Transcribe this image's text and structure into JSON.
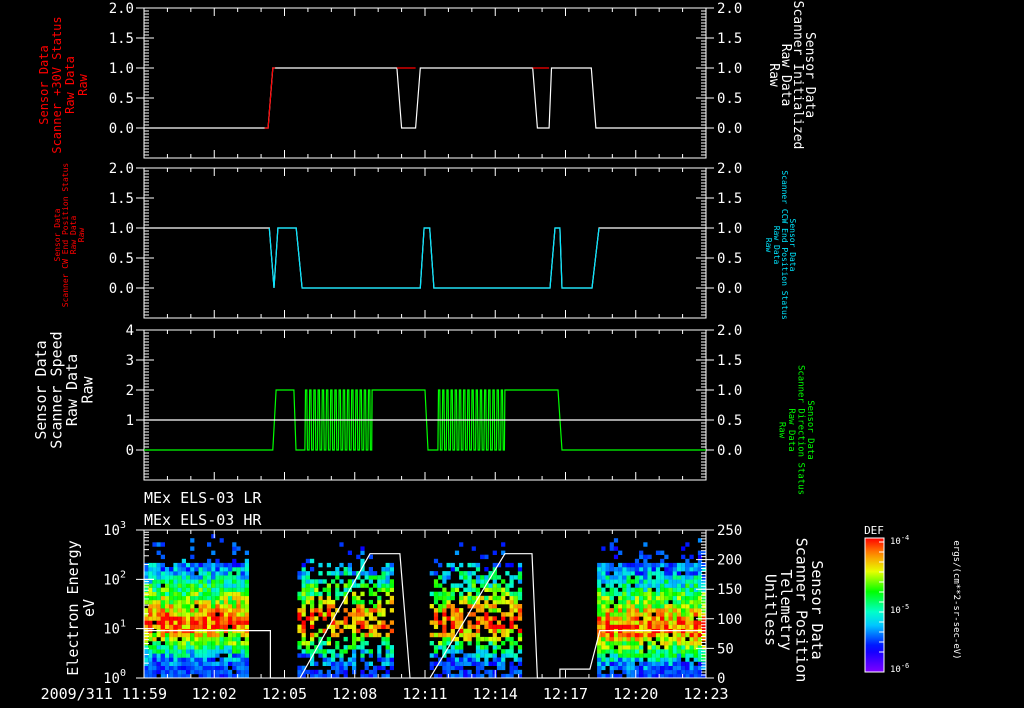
{
  "colors": {
    "white": "#ffffff",
    "red": "#ff0000",
    "cyan": "#00e5ff",
    "green": "#00ff00",
    "background": "#000000"
  },
  "time_axis": {
    "start": "11:59",
    "end": "12:23",
    "ticks": [
      "2009/311 11:59",
      "12:02",
      "12:05",
      "12:08",
      "12:11",
      "12:14",
      "12:17",
      "12:20",
      "12:23"
    ],
    "tick_minutes": [
      0,
      3,
      6,
      9,
      12,
      15,
      18,
      21,
      24
    ]
  },
  "chart_data": [
    {
      "type": "line",
      "name": "panel-1",
      "left_label": [
        "Sensor Data",
        "Scanner +30V Status",
        "Raw Data",
        "Raw"
      ],
      "right_label": [
        "Sensor Data",
        "Scanner Initialized",
        "Raw Data",
        "Raw"
      ],
      "left_ticks": [
        "2.0",
        "1.5",
        "1.0",
        "0.5",
        "0.0"
      ],
      "left_tick_values": [
        2,
        1.5,
        1,
        0.5,
        0
      ],
      "ylim": [
        -0.5,
        2.0
      ],
      "right_ticks": [
        "2.0",
        "1.5",
        "1.0",
        "0.5",
        "0.0"
      ],
      "right_tick_values": [
        2,
        1.5,
        1,
        0.5,
        0
      ],
      "ylim_right": [
        -0.5,
        2.0
      ],
      "series": [
        {
          "name": "Scanner Initialized",
          "color": "#ffffff",
          "x_minutes": [
            0,
            5.3,
            5.5,
            10.8,
            11.0,
            11.6,
            11.8,
            16.6,
            16.8,
            17.3,
            17.4,
            19.1,
            19.3,
            24
          ],
          "values": [
            0,
            0,
            1,
            1,
            0,
            0,
            1,
            1,
            0,
            0,
            1,
            1,
            0,
            0
          ]
        },
        {
          "name": "Scanner +30V Status",
          "color": "#ff0000",
          "x_minutes": [
            5.15,
            5.3,
            5.5,
            5.6
          ],
          "values": [
            0,
            0,
            1,
            1
          ]
        },
        {
          "name": "Scanner +30V Status (seg2)",
          "color": "#ff0000",
          "x_minutes": [
            10.8,
            11.6
          ],
          "values": [
            1,
            1
          ]
        },
        {
          "name": "Scanner +30V Status (seg3)",
          "color": "#ff0000",
          "x_minutes": [
            16.6,
            17.3
          ],
          "values": [
            1,
            1
          ]
        }
      ]
    },
    {
      "type": "line",
      "name": "panel-2",
      "left_label": [
        "Sensor Data",
        "Scanner CW End Position Status",
        "Raw Data",
        "Raw"
      ],
      "right_label": [
        "Sensor Data",
        "Scanner CCW End Position Status",
        "Raw Data",
        "Raw"
      ],
      "left_ticks": [
        "2.0",
        "1.5",
        "1.0",
        "0.5",
        "0.0"
      ],
      "left_tick_values": [
        2,
        1.5,
        1,
        0.5,
        0
      ],
      "ylim": [
        -0.5,
        2.0
      ],
      "right_ticks": [
        "2.0",
        "1.5",
        "1.0",
        "0.5",
        "0.0"
      ],
      "right_tick_values": [
        2,
        1.5,
        1,
        0.5,
        0
      ],
      "ylim_right": [
        -0.5,
        2.0
      ],
      "series": [
        {
          "name": "Scanner CW End Position Status",
          "color": "#ffffff",
          "x_minutes": [
            0,
            5.35,
            5.55,
            5.72,
            6.5,
            6.75,
            11.8,
            11.96,
            12.2,
            12.38,
            17.34,
            17.55,
            17.76,
            17.85,
            19.13,
            19.43,
            24
          ],
          "values": [
            1,
            1,
            0,
            1,
            1,
            0,
            0,
            1,
            1,
            0,
            0,
            1,
            1,
            0,
            0,
            1,
            1
          ]
        },
        {
          "name": "Scanner CCW End Position Status",
          "color": "#00e5ff",
          "x_minutes": [
            5.35,
            5.55,
            5.72,
            6.5,
            6.75,
            11.8,
            11.96,
            12.2,
            12.38,
            17.34,
            17.55,
            17.76,
            17.85,
            19.13,
            19.43
          ],
          "values": [
            1,
            0,
            1,
            1,
            0,
            0,
            1,
            1,
            0,
            0,
            1,
            1,
            0,
            0,
            1
          ]
        }
      ]
    },
    {
      "type": "line",
      "name": "panel-3",
      "left_label": [
        "Sensor Data",
        "Scanner Speed",
        "Raw Data",
        "Raw"
      ],
      "right_label": [
        "Sensor Data",
        "Scanner Direction Status",
        "Raw Data",
        "Raw"
      ],
      "left_ticks": [
        "4",
        "3",
        "2",
        "1",
        "0"
      ],
      "left_tick_values": [
        4,
        3,
        2,
        1,
        0
      ],
      "ylim": [
        -1,
        4
      ],
      "right_ticks": [
        "2.0",
        "1.5",
        "1.0",
        "0.5",
        "0.0"
      ],
      "right_tick_values": [
        2,
        1.5,
        1,
        0.5,
        0
      ],
      "ylim_right": [
        -0.5,
        2.0
      ],
      "series": [
        {
          "name": "Scanner Speed",
          "color": "#00ff00",
          "x_minutes": [
            0,
            5.5,
            5.64,
            6.4,
            6.49,
            6.8,
            9.74,
            12.0,
            12.13,
            12.5,
            15.41,
            17.68,
            17.85,
            24
          ],
          "values": [
            0,
            0,
            2,
            2,
            0,
            0,
            2,
            2,
            0,
            0,
            2,
            2,
            0,
            0
          ],
          "oscillations": [
            {
              "from": 6.87,
              "to": 9.74,
              "cycles": 16,
              "low": 0,
              "high": 2
            },
            {
              "from": 12.55,
              "to": 15.41,
              "cycles": 16,
              "low": 0,
              "high": 2
            }
          ]
        },
        {
          "name": "Scanner Direction Status",
          "color": "#ffffff",
          "x_minutes": [
            0,
            24
          ],
          "values": [
            1,
            1
          ],
          "axis": "left"
        }
      ]
    },
    {
      "type": "heatmap",
      "name": "panel-4",
      "titles": [
        "MEx ELS-03 LR",
        "MEx ELS-03 HR"
      ],
      "left_label": [
        "Electron Energy",
        "eV"
      ],
      "right_label": [
        "Sensor Data",
        "Scanner Position",
        "Telemetry",
        "Unitless"
      ],
      "left_ticks": [
        "10",
        "10",
        "10",
        "10"
      ],
      "left_tick_exponents": [
        "3",
        "2",
        "1",
        "0"
      ],
      "left_tick_values": [
        3,
        2,
        1,
        0
      ],
      "ylim_log10": [
        0,
        3
      ],
      "right_ticks": [
        "250",
        "200",
        "150",
        "100",
        "50",
        "0"
      ],
      "right_tick_values": [
        250,
        200,
        150,
        100,
        50,
        0
      ],
      "ylim_right": [
        0,
        250
      ],
      "data_intervals_minutes": [
        [
          0,
          4.4,
          1.1
        ],
        [
          6.55,
          10.5,
          1.1
        ],
        [
          12.2,
          16.05,
          1.1
        ],
        [
          19.35,
          24,
          1.0
        ]
      ],
      "position_line": {
        "color": "#ffffff",
        "x_minutes": [
          0,
          5.4,
          5.4,
          6.66,
          9.65,
          10.93,
          11.36,
          12.21,
          15.41,
          16.57,
          16.8,
          17.76,
          17.76,
          19.04,
          19.47,
          24
        ],
        "values": [
          80,
          80,
          0,
          0,
          210,
          210,
          0,
          0,
          210,
          210,
          0,
          0,
          15,
          15,
          80,
          80
        ]
      },
      "colorbar": {
        "title": "DEF",
        "ticks": [
          "10",
          "10",
          "10"
        ],
        "tick_exponents": [
          "-4",
          "-5",
          "-6"
        ],
        "units": "ergs/(cm**2-sr-sec-eV)"
      }
    }
  ]
}
